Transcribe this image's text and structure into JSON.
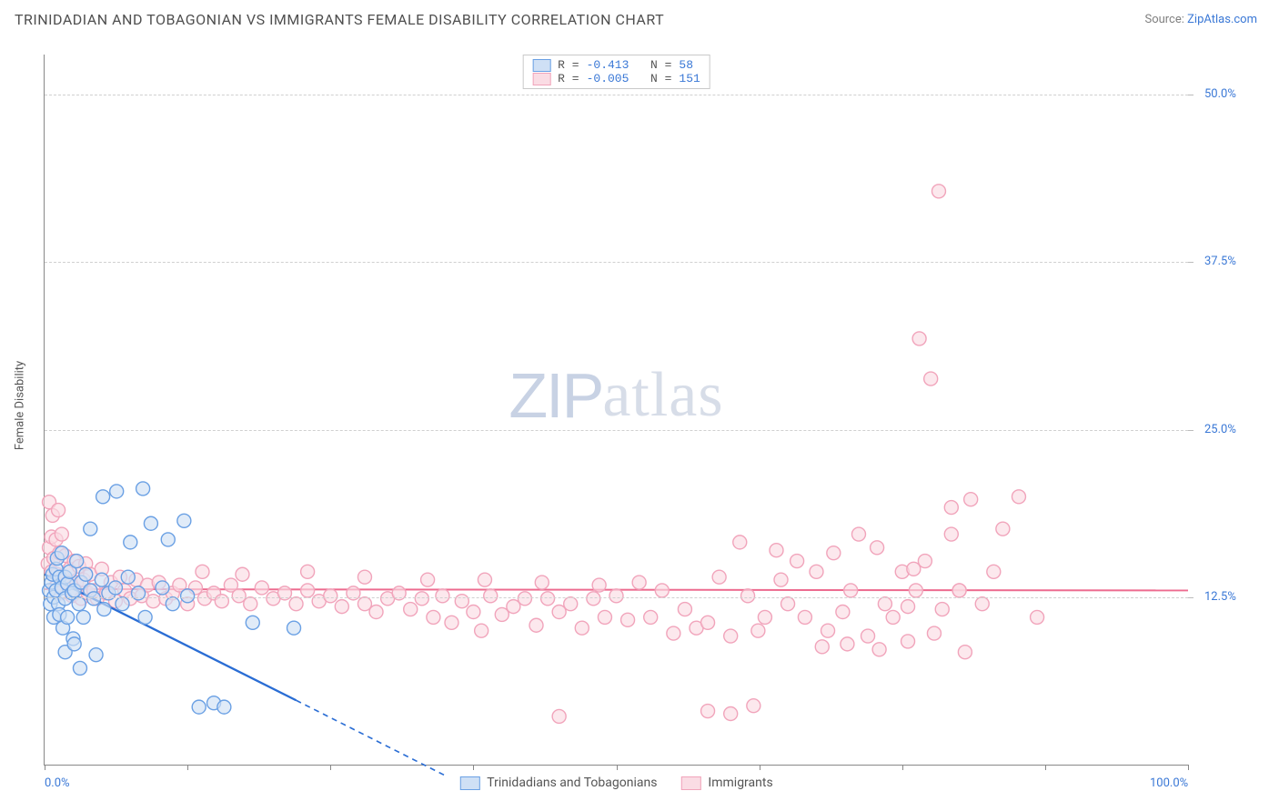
{
  "header": {
    "title": "TRINIDADIAN AND TOBAGONIAN VS IMMIGRANTS FEMALE DISABILITY CORRELATION CHART",
    "source_prefix": "Source: ",
    "source_link": "ZipAtlas.com"
  },
  "chart": {
    "type": "scatter",
    "ylabel": "Female Disability",
    "xlim": [
      0,
      100
    ],
    "ylim": [
      0,
      53
    ],
    "xtick_labels": {
      "0": "0.0%",
      "100": "100.0%"
    },
    "xtick_positions": [
      0,
      12.5,
      25,
      37.5,
      50,
      62.5,
      75,
      87.5,
      100
    ],
    "ytick_labels": {
      "12.5": "12.5%",
      "25": "25.0%",
      "37.5": "37.5%",
      "50": "50.0%"
    },
    "grid_positions": [
      12.5,
      25,
      37.5,
      50
    ],
    "marker_radius": 7.5,
    "marker_stroke_width": 1.4,
    "background_color": "#ffffff",
    "grid_color": "#d0d0d0",
    "axis_color": "#888888",
    "tick_label_color": "#3a78d6",
    "series": [
      {
        "id": "trinidad",
        "label": "Trinidadians and Tobagonians",
        "fill": "#cfe0f5",
        "stroke": "#6aa0e4",
        "fill_opacity": 0.65,
        "R": "-0.413",
        "N": "58",
        "trend": {
          "x1": 0,
          "y1": 14.2,
          "x2_solid": 22,
          "y2_solid": 4.8,
          "x2_dash": 35,
          "y2_dash": -0.8,
          "color": "#2a6dd4",
          "width": 2.3,
          "dash": "6,5"
        },
        "points": [
          [
            0.4,
            13.0
          ],
          [
            0.6,
            13.6
          ],
          [
            0.5,
            12.0
          ],
          [
            0.7,
            14.2
          ],
          [
            0.8,
            11.0
          ],
          [
            0.8,
            12.5
          ],
          [
            1.0,
            14.6
          ],
          [
            1.0,
            13.0
          ],
          [
            1.1,
            15.4
          ],
          [
            1.2,
            12.0
          ],
          [
            1.3,
            11.2
          ],
          [
            1.3,
            14.0
          ],
          [
            1.5,
            13.2
          ],
          [
            1.5,
            15.8
          ],
          [
            1.6,
            10.2
          ],
          [
            1.8,
            14.0
          ],
          [
            1.8,
            12.4
          ],
          [
            2.0,
            13.5
          ],
          [
            2.0,
            11.0
          ],
          [
            2.2,
            14.4
          ],
          [
            2.4,
            12.8
          ],
          [
            2.5,
            9.4
          ],
          [
            2.6,
            13.0
          ],
          [
            2.8,
            15.2
          ],
          [
            3.0,
            12.0
          ],
          [
            3.2,
            13.6
          ],
          [
            3.4,
            11.0
          ],
          [
            3.6,
            14.2
          ],
          [
            4.0,
            13.0
          ],
          [
            4.0,
            17.6
          ],
          [
            4.3,
            12.4
          ],
          [
            4.5,
            8.2
          ],
          [
            5.0,
            13.8
          ],
          [
            5.1,
            20.0
          ],
          [
            5.2,
            11.6
          ],
          [
            5.6,
            12.8
          ],
          [
            6.2,
            13.2
          ],
          [
            6.3,
            20.4
          ],
          [
            6.8,
            12.0
          ],
          [
            7.3,
            14.0
          ],
          [
            7.5,
            16.6
          ],
          [
            8.2,
            12.8
          ],
          [
            8.6,
            20.6
          ],
          [
            8.8,
            11.0
          ],
          [
            9.3,
            18.0
          ],
          [
            10.3,
            13.2
          ],
          [
            10.8,
            16.8
          ],
          [
            11.2,
            12.0
          ],
          [
            12.2,
            18.2
          ],
          [
            12.5,
            12.6
          ],
          [
            13.5,
            4.3
          ],
          [
            14.8,
            4.6
          ],
          [
            15.7,
            4.3
          ],
          [
            18.2,
            10.6
          ],
          [
            21.8,
            10.2
          ],
          [
            1.8,
            8.4
          ],
          [
            2.6,
            9.0
          ],
          [
            3.1,
            7.2
          ]
        ]
      },
      {
        "id": "immigrants",
        "label": "Immigrants",
        "fill": "#fadce4",
        "stroke": "#f1a4bb",
        "fill_opacity": 0.65,
        "R": "-0.005",
        "N": "151",
        "trend": {
          "x1": 0,
          "y1": 13.1,
          "x2_solid": 100,
          "y2_solid": 13.0,
          "x2_dash": 100,
          "y2_dash": 13.0,
          "color": "#ed6b8f",
          "width": 2.0,
          "dash": ""
        },
        "points": [
          [
            0.3,
            15.0
          ],
          [
            0.4,
            19.6
          ],
          [
            0.4,
            16.2
          ],
          [
            0.6,
            17.0
          ],
          [
            0.6,
            14.4
          ],
          [
            0.7,
            18.6
          ],
          [
            0.8,
            15.4
          ],
          [
            0.9,
            13.2
          ],
          [
            1.0,
            16.8
          ],
          [
            1.1,
            14.2
          ],
          [
            1.2,
            19.0
          ],
          [
            1.3,
            15.8
          ],
          [
            1.4,
            12.8
          ],
          [
            1.5,
            17.2
          ],
          [
            1.6,
            14.0
          ],
          [
            1.8,
            15.6
          ],
          [
            2.0,
            13.6
          ],
          [
            2.2,
            14.6
          ],
          [
            2.4,
            12.6
          ],
          [
            2.6,
            15.2
          ],
          [
            2.8,
            13.6
          ],
          [
            3.0,
            14.8
          ],
          [
            3.2,
            12.4
          ],
          [
            3.4,
            13.8
          ],
          [
            3.6,
            15.0
          ],
          [
            3.8,
            12.8
          ],
          [
            4.0,
            14.2
          ],
          [
            4.3,
            13.0
          ],
          [
            4.6,
            12.4
          ],
          [
            5.0,
            14.6
          ],
          [
            5.4,
            12.8
          ],
          [
            5.8,
            13.6
          ],
          [
            6.2,
            12.2
          ],
          [
            6.6,
            14.0
          ],
          [
            7.0,
            13.0
          ],
          [
            7.5,
            12.4
          ],
          [
            8.0,
            13.8
          ],
          [
            8.5,
            12.6
          ],
          [
            9.0,
            13.4
          ],
          [
            9.5,
            12.2
          ],
          [
            10.0,
            13.6
          ],
          [
            10.6,
            12.4
          ],
          [
            11.2,
            12.8
          ],
          [
            11.8,
            13.4
          ],
          [
            12.5,
            12.0
          ],
          [
            13.2,
            13.2
          ],
          [
            14.0,
            12.4
          ],
          [
            14.8,
            12.8
          ],
          [
            15.5,
            12.2
          ],
          [
            16.3,
            13.4
          ],
          [
            17.0,
            12.6
          ],
          [
            18.0,
            12.0
          ],
          [
            19.0,
            13.2
          ],
          [
            20.0,
            12.4
          ],
          [
            21.0,
            12.8
          ],
          [
            22.0,
            12.0
          ],
          [
            23.0,
            13.0
          ],
          [
            24.0,
            12.2
          ],
          [
            25.0,
            12.6
          ],
          [
            26.0,
            11.8
          ],
          [
            27.0,
            12.8
          ],
          [
            28.0,
            12.0
          ],
          [
            29.0,
            11.4
          ],
          [
            30.0,
            12.4
          ],
          [
            31.0,
            12.8
          ],
          [
            32.0,
            11.6
          ],
          [
            33.0,
            12.4
          ],
          [
            34.0,
            11.0
          ],
          [
            34.8,
            12.6
          ],
          [
            35.6,
            10.6
          ],
          [
            36.5,
            12.2
          ],
          [
            37.5,
            11.4
          ],
          [
            38.2,
            10.0
          ],
          [
            39.0,
            12.6
          ],
          [
            40.0,
            11.2
          ],
          [
            41.0,
            11.8
          ],
          [
            42.0,
            12.4
          ],
          [
            43.0,
            10.4
          ],
          [
            44.0,
            12.4
          ],
          [
            45.0,
            11.4
          ],
          [
            46.0,
            12.0
          ],
          [
            47.0,
            10.2
          ],
          [
            48.0,
            12.4
          ],
          [
            49.0,
            11.0
          ],
          [
            50.0,
            12.6
          ],
          [
            51.0,
            10.8
          ],
          [
            52.0,
            13.6
          ],
          [
            53.0,
            11.0
          ],
          [
            54.0,
            13.0
          ],
          [
            55.0,
            9.8
          ],
          [
            56.0,
            11.6
          ],
          [
            57.0,
            10.2
          ],
          [
            58.0,
            10.6
          ],
          [
            59.0,
            14.0
          ],
          [
            60.0,
            9.6
          ],
          [
            60.8,
            16.6
          ],
          [
            61.5,
            12.6
          ],
          [
            62.4,
            10.0
          ],
          [
            63.0,
            11.0
          ],
          [
            64.0,
            16.0
          ],
          [
            64.4,
            13.8
          ],
          [
            65.0,
            12.0
          ],
          [
            65.8,
            15.2
          ],
          [
            66.5,
            11.0
          ],
          [
            67.5,
            14.4
          ],
          [
            68.5,
            10.0
          ],
          [
            69.0,
            15.8
          ],
          [
            69.8,
            11.4
          ],
          [
            70.5,
            13.0
          ],
          [
            71.2,
            17.2
          ],
          [
            72.0,
            9.6
          ],
          [
            72.8,
            16.2
          ],
          [
            73.5,
            12.0
          ],
          [
            74.2,
            11.0
          ],
          [
            75.0,
            14.4
          ],
          [
            75.5,
            11.8
          ],
          [
            76.2,
            13.0
          ],
          [
            77.0,
            15.2
          ],
          [
            77.8,
            9.8
          ],
          [
            78.5,
            11.6
          ],
          [
            79.3,
            17.2
          ],
          [
            80.0,
            13.0
          ],
          [
            81.0,
            19.8
          ],
          [
            82.0,
            12.0
          ],
          [
            83.0,
            14.4
          ],
          [
            83.8,
            17.6
          ],
          [
            85.2,
            20.0
          ],
          [
            86.8,
            11.0
          ],
          [
            62.0,
            4.4
          ],
          [
            76.5,
            31.8
          ],
          [
            77.5,
            28.8
          ],
          [
            78.2,
            42.8
          ],
          [
            79.3,
            19.2
          ],
          [
            80.0,
            13.0
          ],
          [
            60.0,
            3.8
          ],
          [
            45.0,
            3.6
          ],
          [
            58.0,
            4.0
          ],
          [
            73.0,
            8.6
          ],
          [
            68.0,
            8.8
          ],
          [
            80.5,
            8.4
          ],
          [
            76.0,
            14.6
          ],
          [
            75.5,
            9.2
          ],
          [
            70.2,
            9.0
          ],
          [
            13.8,
            14.4
          ],
          [
            17.3,
            14.2
          ],
          [
            23.0,
            14.4
          ],
          [
            28.0,
            14.0
          ],
          [
            33.5,
            13.8
          ],
          [
            38.5,
            13.8
          ],
          [
            43.5,
            13.6
          ],
          [
            48.5,
            13.4
          ]
        ]
      }
    ],
    "watermark": {
      "zip": "ZIP",
      "atlas": "atlas"
    }
  }
}
